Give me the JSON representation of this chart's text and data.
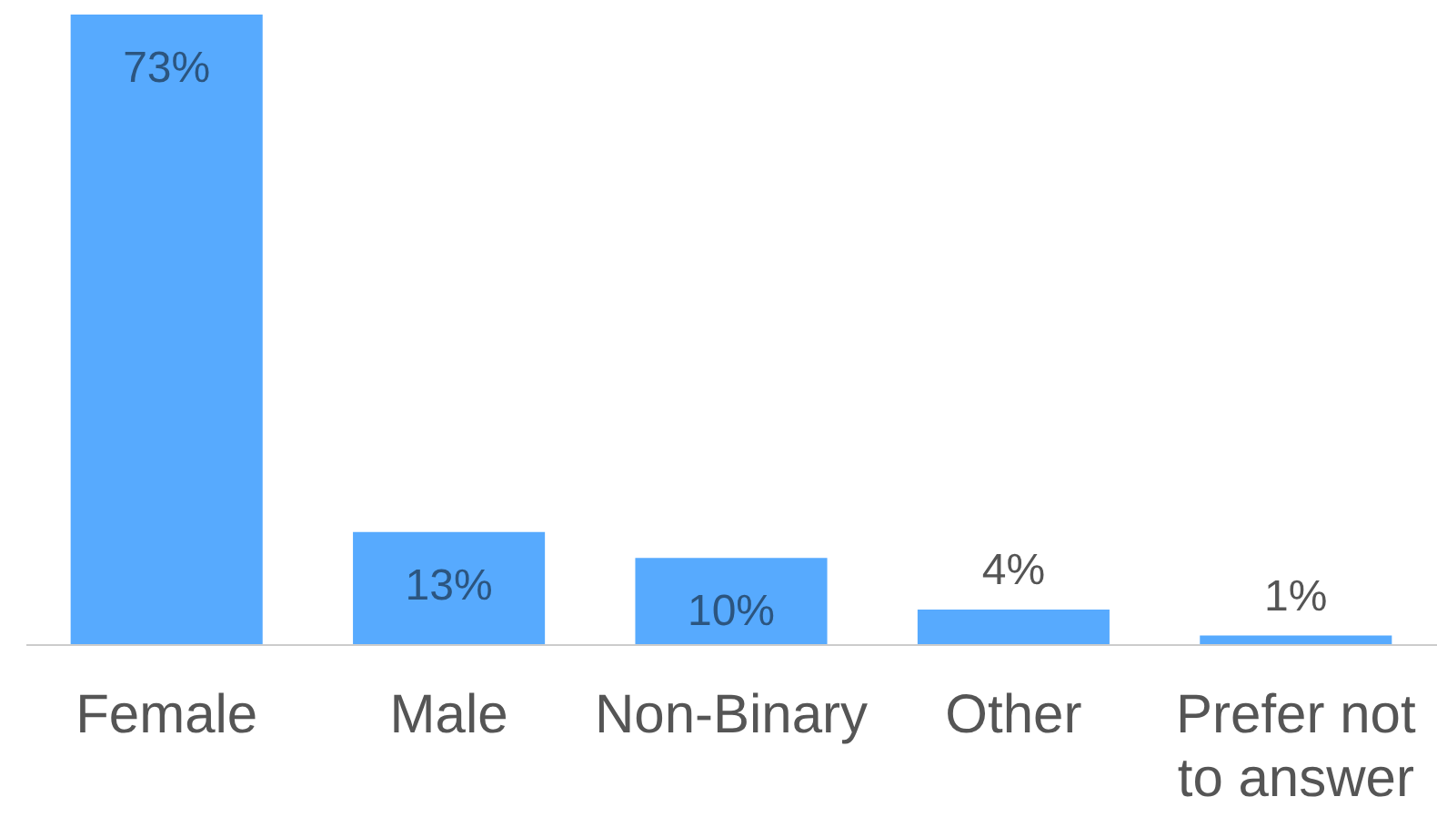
{
  "chart_data": {
    "type": "bar",
    "categories": [
      "Female",
      "Male",
      "Non-Binary",
      "Other",
      "Prefer not to answer"
    ],
    "values": [
      73,
      13,
      10,
      4,
      1
    ],
    "value_labels": [
      "73%",
      "13%",
      "10%",
      "4%",
      "1%"
    ],
    "color": "#57aafe"
  }
}
